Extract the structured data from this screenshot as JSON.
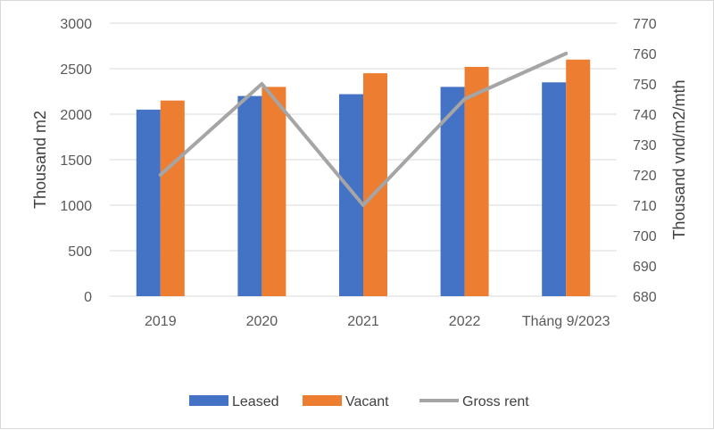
{
  "chart_data": {
    "type": "bar",
    "categories": [
      "2019",
      "2020",
      "2021",
      "2022",
      "Tháng 9/2023"
    ],
    "series": [
      {
        "name": "Leased",
        "kind": "bar",
        "axis": "left",
        "color": "#4472C4",
        "values": [
          2050,
          2200,
          2220,
          2300,
          2350
        ]
      },
      {
        "name": "Vacant",
        "kind": "bar",
        "axis": "left",
        "color": "#ED7D31",
        "values": [
          2150,
          2300,
          2450,
          2520,
          2600
        ]
      },
      {
        "name": "Gross rent",
        "kind": "line",
        "axis": "right",
        "color": "#A5A5A5",
        "values": [
          720,
          750,
          710,
          745,
          760
        ]
      }
    ],
    "title": "",
    "ylabel": "Thousand m2",
    "y2label": "Thousand vnd/m2/mth",
    "ylim": [
      0,
      3000
    ],
    "y2lim": [
      680,
      770
    ],
    "yticks": [
      "0",
      "500",
      "1000",
      "1500",
      "2000",
      "2500",
      "3000"
    ],
    "y2ticks": [
      "680",
      "690",
      "700",
      "710",
      "720",
      "730",
      "740",
      "750",
      "760",
      "770"
    ],
    "grid": true,
    "legend_position": "bottom"
  }
}
